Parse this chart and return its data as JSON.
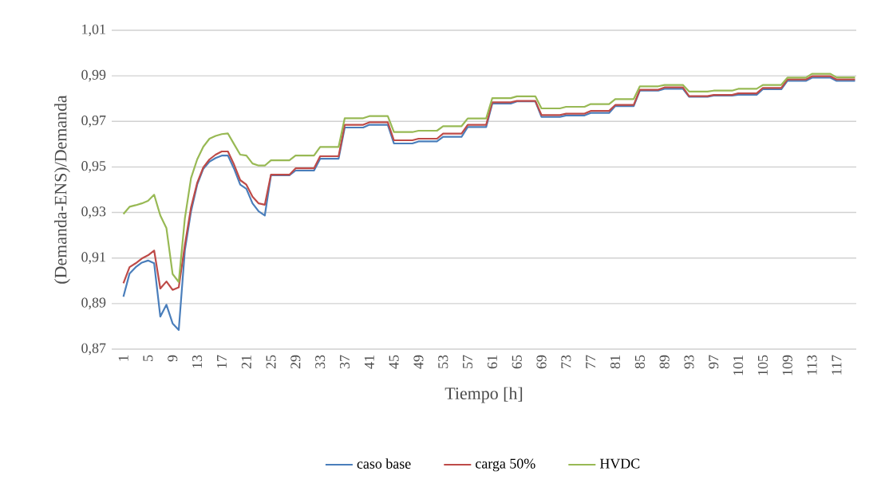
{
  "chart_data": {
    "type": "line",
    "xlabel": "Tiempo [h]",
    "ylabel": "(Demanda-ENS)/Demanda",
    "categories": [
      "1",
      null,
      null,
      null,
      "5",
      null,
      null,
      null,
      "9",
      null,
      null,
      null,
      "13",
      null,
      null,
      null,
      "17",
      null,
      null,
      null,
      "21",
      null,
      null,
      null,
      "25",
      null,
      null,
      null,
      "29",
      null,
      null,
      null,
      "33",
      null,
      null,
      null,
      "37",
      null,
      null,
      null,
      "41",
      null,
      null,
      null,
      "45",
      null,
      null,
      null,
      "49",
      null,
      null,
      null,
      "53",
      null,
      null,
      null,
      "57",
      null,
      null,
      null,
      "61",
      null,
      null,
      null,
      "65",
      null,
      null,
      null,
      "69",
      null,
      null,
      null,
      "73",
      null,
      null,
      null,
      "77",
      null,
      null,
      null,
      "81",
      null,
      null,
      null,
      "85",
      null,
      null,
      null,
      "89",
      null,
      null,
      null,
      "93",
      null,
      null,
      null,
      "97",
      null,
      null,
      null,
      "101",
      null,
      null,
      null,
      "105",
      null,
      null,
      null,
      "109",
      null,
      null,
      null,
      "113",
      null,
      null,
      null,
      "117",
      null,
      null,
      null
    ],
    "series": [
      {
        "name": "caso base",
        "color": "#4a7ebb",
        "values": [
          0.893,
          0.9032,
          0.906,
          0.908,
          0.9089,
          0.9077,
          0.8843,
          0.8895,
          0.8813,
          0.8784,
          0.9135,
          0.9305,
          0.9422,
          0.9492,
          0.9523,
          0.9539,
          0.955,
          0.955,
          0.9492,
          0.9422,
          0.9404,
          0.934,
          0.9305,
          0.9287,
          0.9463,
          0.9463,
          0.9463,
          0.9463,
          0.9484,
          0.9484,
          0.9484,
          0.9484,
          0.9536,
          0.9536,
          0.9536,
          0.9536,
          0.9673,
          0.9673,
          0.9673,
          0.9673,
          0.9685,
          0.9685,
          0.9685,
          0.9685,
          0.9603,
          0.9603,
          0.9603,
          0.9603,
          0.9612,
          0.9612,
          0.9612,
          0.9612,
          0.9632,
          0.9632,
          0.9632,
          0.9632,
          0.9675,
          0.9675,
          0.9675,
          0.9675,
          0.9778,
          0.9778,
          0.9778,
          0.9778,
          0.9788,
          0.9788,
          0.9788,
          0.9788,
          0.972,
          0.972,
          0.972,
          0.972,
          0.9726,
          0.9726,
          0.9726,
          0.9726,
          0.9737,
          0.9737,
          0.9737,
          0.9737,
          0.9767,
          0.9767,
          0.9767,
          0.9767,
          0.9835,
          0.9835,
          0.9835,
          0.9835,
          0.9843,
          0.9843,
          0.9843,
          0.9843,
          0.9808,
          0.9808,
          0.9808,
          0.9808,
          0.9813,
          0.9813,
          0.9813,
          0.9813,
          0.9817,
          0.9817,
          0.9817,
          0.9817,
          0.9841,
          0.9841,
          0.9841,
          0.9841,
          0.9878,
          0.9878,
          0.9878,
          0.9878,
          0.9892,
          0.9892,
          0.9892,
          0.9892,
          0.9878,
          0.9878,
          0.9878,
          0.9878
        ]
      },
      {
        "name": "carga 50%",
        "color": "#be4b48",
        "values": [
          0.8989,
          0.906,
          0.9077,
          0.9098,
          0.9112,
          0.9133,
          0.8966,
          0.8997,
          0.896,
          0.8971,
          0.9158,
          0.9322,
          0.943,
          0.9498,
          0.9533,
          0.9554,
          0.9568,
          0.9568,
          0.951,
          0.9442,
          0.9422,
          0.9369,
          0.934,
          0.9334,
          0.9466,
          0.9466,
          0.9466,
          0.9466,
          0.9494,
          0.9494,
          0.9494,
          0.9494,
          0.9547,
          0.9547,
          0.9547,
          0.9547,
          0.9685,
          0.9685,
          0.9685,
          0.9685,
          0.9696,
          0.9696,
          0.9696,
          0.9696,
          0.9617,
          0.9617,
          0.9617,
          0.9617,
          0.9624,
          0.9624,
          0.9624,
          0.9624,
          0.9646,
          0.9646,
          0.9646,
          0.9646,
          0.9685,
          0.9685,
          0.9685,
          0.9685,
          0.9784,
          0.9784,
          0.9784,
          0.9784,
          0.979,
          0.979,
          0.979,
          0.979,
          0.9728,
          0.9728,
          0.9728,
          0.9728,
          0.9734,
          0.9734,
          0.9734,
          0.9734,
          0.9746,
          0.9746,
          0.9746,
          0.9746,
          0.9772,
          0.9772,
          0.9772,
          0.9772,
          0.9839,
          0.9839,
          0.9839,
          0.9839,
          0.9849,
          0.9849,
          0.9849,
          0.9849,
          0.9811,
          0.9811,
          0.9811,
          0.9811,
          0.9816,
          0.9816,
          0.9816,
          0.9816,
          0.9823,
          0.9823,
          0.9823,
          0.9823,
          0.9847,
          0.9847,
          0.9847,
          0.9847,
          0.9884,
          0.9884,
          0.9884,
          0.9884,
          0.9898,
          0.9898,
          0.9898,
          0.9898,
          0.9884,
          0.9884,
          0.9884,
          0.9884
        ]
      },
      {
        "name": "HVDC",
        "color": "#98b954",
        "values": [
          0.9293,
          0.9325,
          0.9332,
          0.934,
          0.9351,
          0.9378,
          0.9287,
          0.9231,
          0.903,
          0.8995,
          0.9275,
          0.9451,
          0.9533,
          0.9589,
          0.9624,
          0.9636,
          0.9644,
          0.9647,
          0.96,
          0.9554,
          0.955,
          0.9515,
          0.9506,
          0.9506,
          0.9529,
          0.9529,
          0.9529,
          0.9529,
          0.955,
          0.955,
          0.955,
          0.955,
          0.9588,
          0.9588,
          0.9588,
          0.9588,
          0.9714,
          0.9714,
          0.9714,
          0.9714,
          0.9723,
          0.9723,
          0.9723,
          0.9723,
          0.9653,
          0.9653,
          0.9653,
          0.9653,
          0.9659,
          0.9659,
          0.9659,
          0.9659,
          0.9679,
          0.9679,
          0.9679,
          0.9679,
          0.9713,
          0.9713,
          0.9713,
          0.9713,
          0.9802,
          0.9802,
          0.9802,
          0.9802,
          0.981,
          0.981,
          0.981,
          0.981,
          0.9757,
          0.9757,
          0.9757,
          0.9757,
          0.9764,
          0.9764,
          0.9764,
          0.9764,
          0.9776,
          0.9776,
          0.9776,
          0.9776,
          0.9798,
          0.9798,
          0.9798,
          0.9798,
          0.9854,
          0.9854,
          0.9854,
          0.9854,
          0.986,
          0.986,
          0.986,
          0.986,
          0.9831,
          0.9831,
          0.9831,
          0.9831,
          0.9835,
          0.9835,
          0.9835,
          0.9835,
          0.9843,
          0.9843,
          0.9843,
          0.9843,
          0.986,
          0.986,
          0.986,
          0.986,
          0.9892,
          0.9892,
          0.9892,
          0.9892,
          0.9909,
          0.9909,
          0.9909,
          0.9909,
          0.9893,
          0.9893,
          0.9893,
          0.9893
        ]
      }
    ],
    "ylim": [
      0.87,
      1.01
    ],
    "yticks": [
      {
        "value": 0.87,
        "label": "0,87"
      },
      {
        "value": 0.89,
        "label": "0,89"
      },
      {
        "value": 0.91,
        "label": "0,91"
      },
      {
        "value": 0.93,
        "label": "0,93"
      },
      {
        "value": 0.95,
        "label": "0,95"
      },
      {
        "value": 0.97,
        "label": "0,97"
      },
      {
        "value": 0.99,
        "label": "0,99"
      },
      {
        "value": 1.01,
        "label": "1,01"
      }
    ],
    "grid": "y",
    "legend": "bottom",
    "marker": "none",
    "line_style": "solid"
  }
}
